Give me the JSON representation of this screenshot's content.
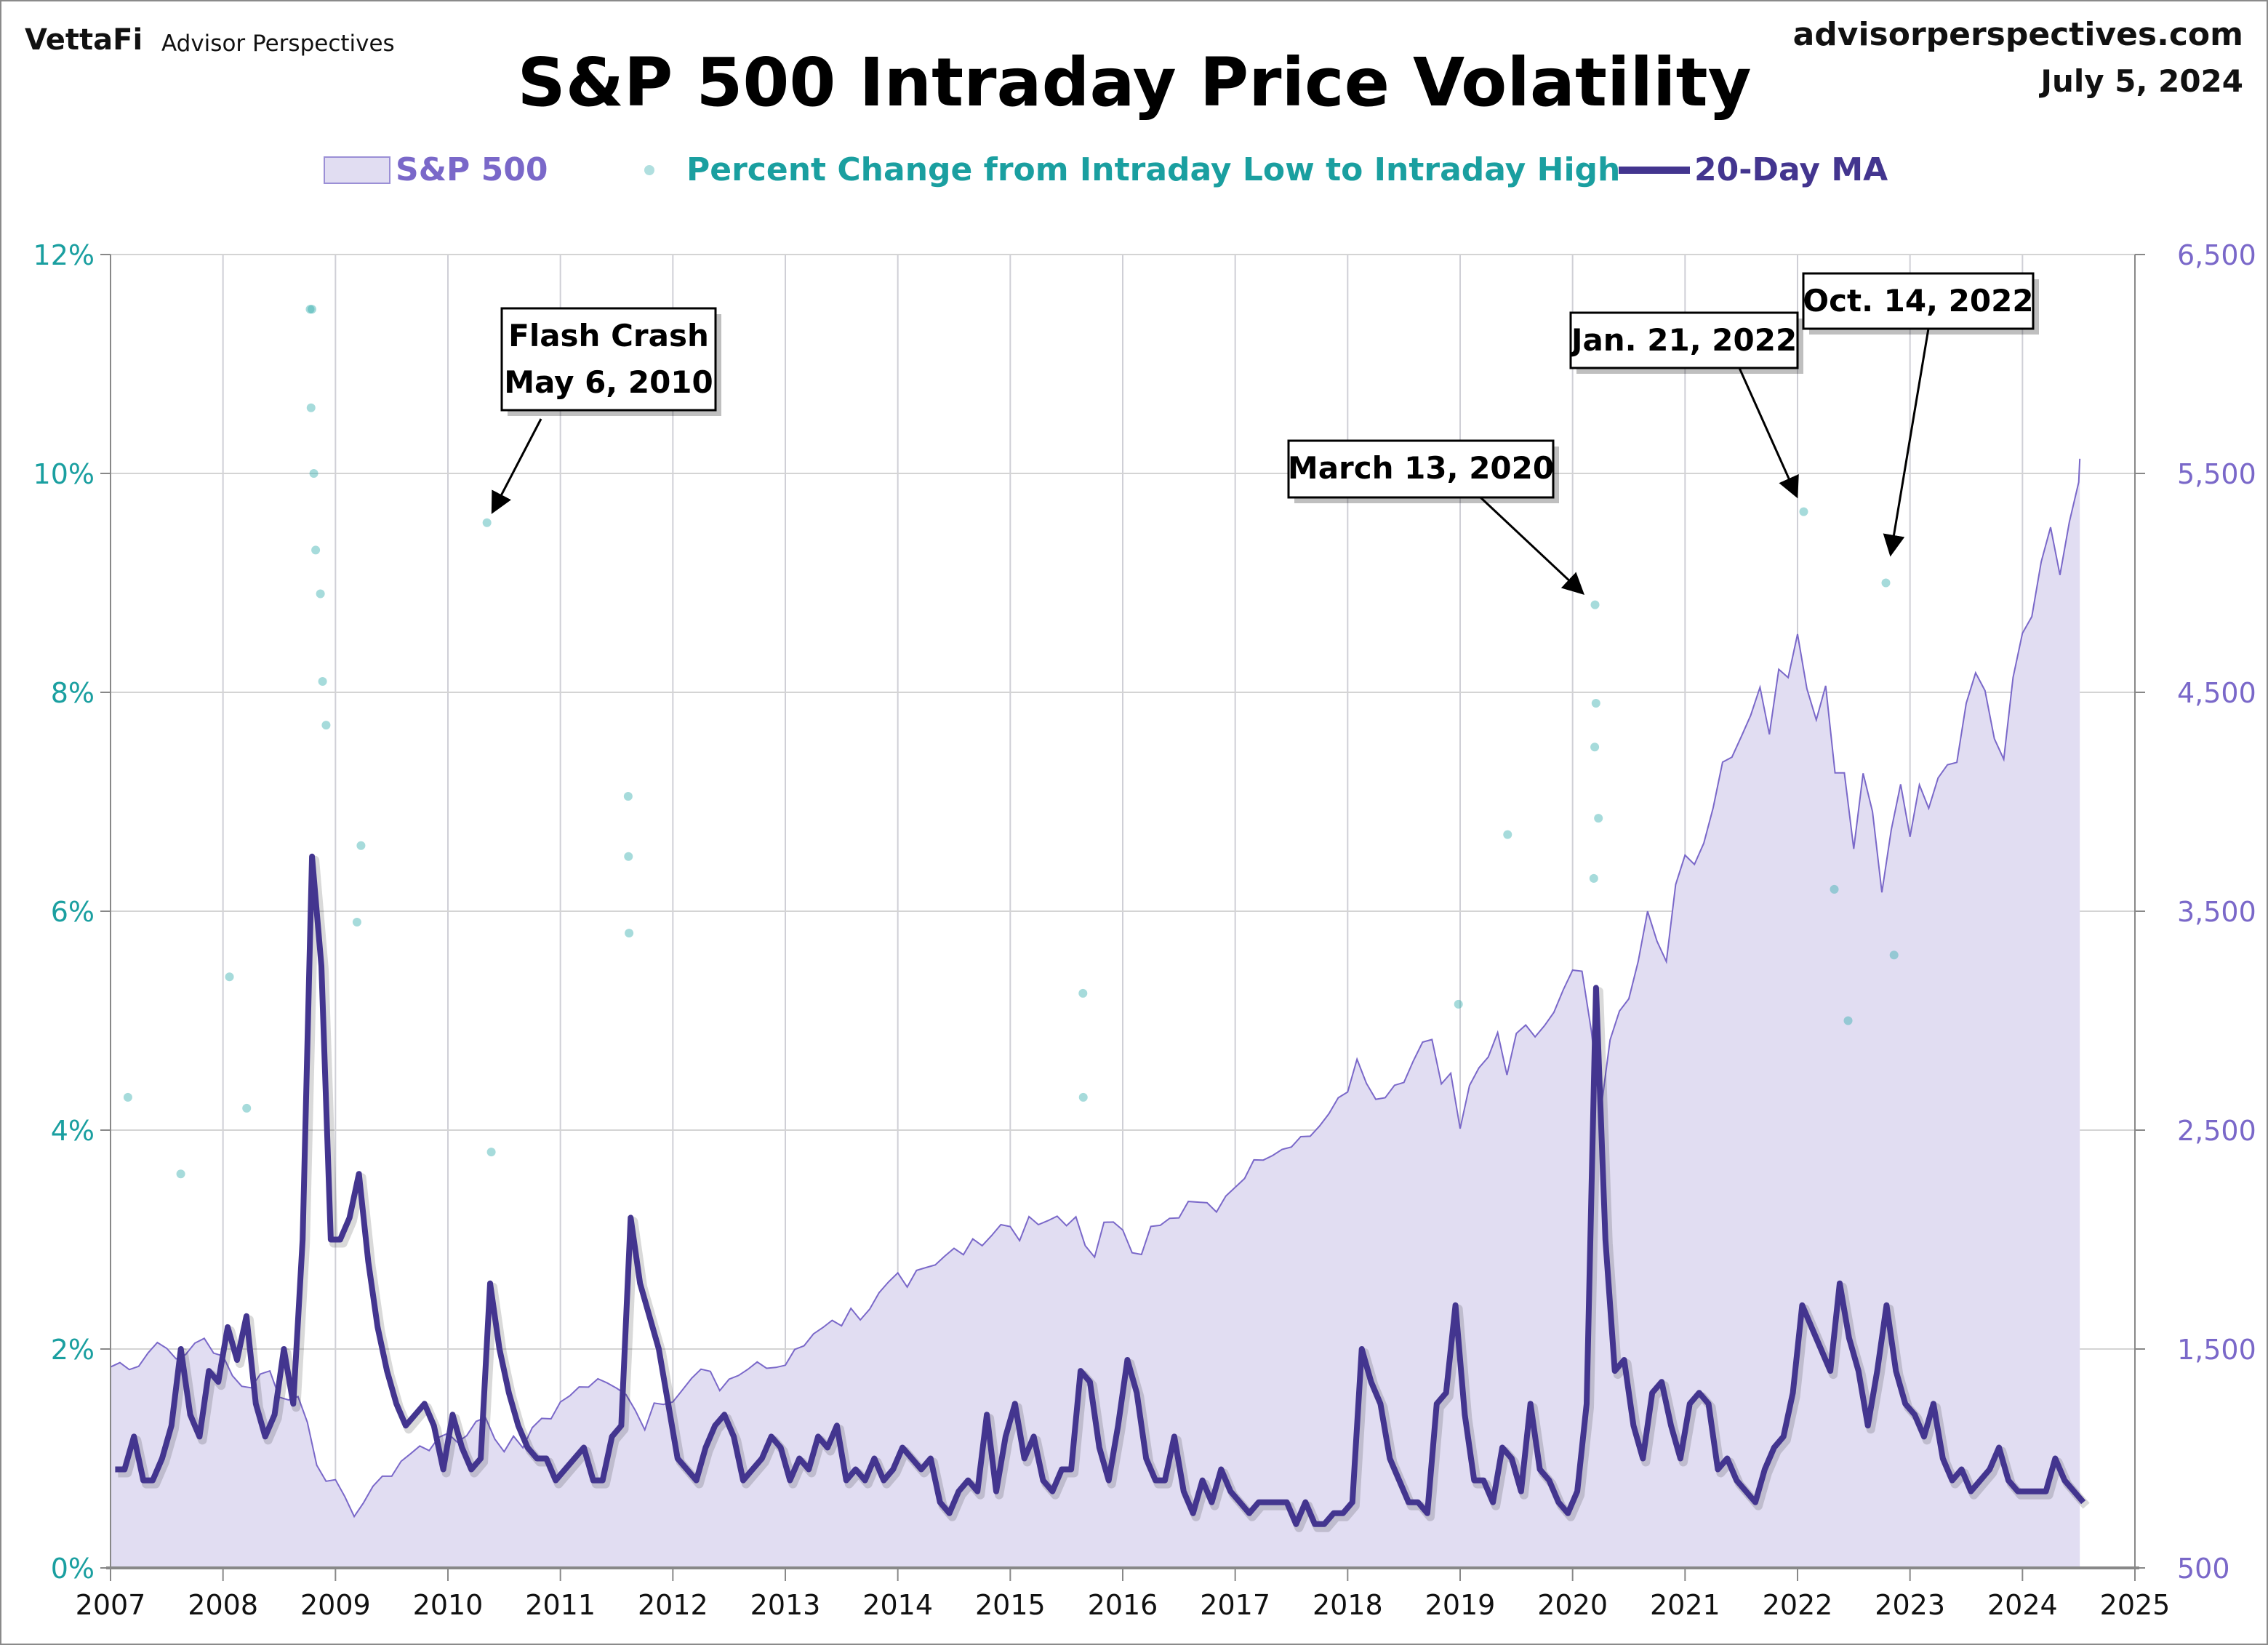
{
  "header": {
    "brand": "VettaFi",
    "brand_sub": "Advisor Perspectives",
    "site": "advisorperspectives.com",
    "date": "July 5, 2024",
    "title": "S&P 500 Intraday Price Volatility"
  },
  "colors": {
    "sp500_fill": "#e1ddf2",
    "sp500_line": "#7a68c9",
    "scatter": "#3aafb0",
    "ma": "#43358f",
    "left_axis": "#1a9fa0",
    "right_axis": "#7a68c9",
    "grid": "#cfcfd6"
  },
  "chart_data": {
    "type": "line",
    "title": "S&P 500 Intraday Price Volatility",
    "legend": [
      "S&P 500",
      "Percent Change from Intraday Low to Intraday High",
      "20-Day MA"
    ],
    "legend_placement": "top",
    "grid": true,
    "x_ticks": [
      "2007",
      "2008",
      "2009",
      "2010",
      "2011",
      "2012",
      "2013",
      "2014",
      "2015",
      "2016",
      "2017",
      "2018",
      "2019",
      "2020",
      "2021",
      "2022",
      "2023",
      "2024",
      "2025"
    ],
    "xlim": [
      2007,
      2025
    ],
    "left_axis": {
      "ticks": [
        "0%",
        "2%",
        "4%",
        "6%",
        "8%",
        "10%",
        "12%"
      ],
      "ylim": [
        0,
        12
      ]
    },
    "right_axis": {
      "ticks": [
        "500",
        "1,500",
        "2,500",
        "3,500",
        "4,500",
        "5,500",
        "6,500"
      ],
      "ylim": [
        500,
        6500
      ]
    },
    "sp500_monthly_start": "2007-01",
    "sp500_monthly": [
      1438,
      1406,
      1421,
      1482,
      1530,
      1503,
      1455,
      1474,
      1527,
      1549,
      1481,
      1468,
      1378,
      1330,
      1323,
      1386,
      1400,
      1280,
      1267,
      1283,
      1165,
      969,
      896,
      903,
      826,
      735,
      798,
      873,
      919,
      919,
      987,
      1021,
      1057,
      1036,
      1096,
      1115,
      1074,
      1104,
      1169,
      1187,
      1089,
      1031,
      1102,
      1049,
      1141,
      1183,
      1181,
      1258,
      1286,
      1327,
      1326,
      1364,
      1345,
      1321,
      1292,
      1219,
      1131,
      1253,
      1247,
      1258,
      1312,
      1366,
      1408,
      1398,
      1310,
      1362,
      1379,
      1407,
      1441,
      1412,
      1416,
      1426,
      1498,
      1515,
      1569,
      1598,
      1631,
      1606,
      1686,
      1633,
      1682,
      1757,
      1806,
      1848,
      1783,
      1859,
      1872,
      1884,
      1924,
      1960,
      1931,
      2003,
      1972,
      2018,
      2068,
      2059,
      1995,
      2105,
      2068,
      2086,
      2107,
      2063,
      2104,
      1972,
      1920,
      2079,
      2080,
      2044,
      1940,
      1932,
      2060,
      2065,
      2097,
      2099,
      2174,
      2171,
      2168,
      2126,
      2199,
      2239,
      2279,
      2364,
      2363,
      2384,
      2412,
      2423,
      2470,
      2472,
      2519,
      2575,
      2648,
      2674,
      2824,
      2714,
      2641,
      2648,
      2705,
      2718,
      2816,
      2902,
      2914,
      2711,
      2760,
      2507,
      2704,
      2784,
      2834,
      2946,
      2752,
      2942,
      2980,
      2926,
      2977,
      3038,
      3141,
      3231,
      3226,
      2954,
      2585,
      2912,
      3044,
      3100,
      3271,
      3500,
      3363,
      3270,
      3622,
      3756,
      3714,
      3811,
      3973,
      4181,
      4204,
      4298,
      4395,
      4523,
      4308,
      4605,
      4567,
      4766,
      4516,
      4374,
      4530,
      4132,
      4132,
      3785,
      4130,
      3955,
      3586,
      3872,
      4080,
      3840,
      4077,
      3970,
      4109,
      4169,
      4180,
      4450,
      4589,
      4508,
      4288,
      4194,
      4568,
      4770,
      4846,
      5096,
      5254,
      5036,
      5278,
      5460,
      5567
    ],
    "ma20_monthly_pct": [
      0.9,
      0.9,
      1.2,
      0.8,
      0.8,
      1.0,
      1.3,
      2.0,
      1.4,
      1.2,
      1.8,
      1.7,
      2.2,
      1.9,
      2.3,
      1.5,
      1.2,
      1.4,
      2.0,
      1.5,
      3.0,
      6.5,
      5.5,
      3.0,
      3.0,
      3.2,
      3.6,
      2.8,
      2.2,
      1.8,
      1.5,
      1.3,
      1.4,
      1.5,
      1.3,
      0.9,
      1.4,
      1.1,
      0.9,
      1.0,
      2.6,
      2.0,
      1.6,
      1.3,
      1.1,
      1.0,
      1.0,
      0.8,
      0.9,
      1.0,
      1.1,
      0.8,
      0.8,
      1.2,
      1.3,
      3.2,
      2.6,
      2.3,
      2.0,
      1.5,
      1.0,
      0.9,
      0.8,
      1.1,
      1.3,
      1.4,
      1.2,
      0.8,
      0.9,
      1.0,
      1.2,
      1.1,
      0.8,
      1.0,
      0.9,
      1.2,
      1.1,
      1.3,
      0.8,
      0.9,
      0.8,
      1.0,
      0.8,
      0.9,
      1.1,
      1.0,
      0.9,
      1.0,
      0.6,
      0.5,
      0.7,
      0.8,
      0.7,
      1.4,
      0.7,
      1.2,
      1.5,
      1.0,
      1.2,
      0.8,
      0.7,
      0.9,
      0.9,
      1.8,
      1.7,
      1.1,
      0.8,
      1.3,
      1.9,
      1.6,
      1.0,
      0.8,
      0.8,
      1.2,
      0.7,
      0.5,
      0.8,
      0.6,
      0.9,
      0.7,
      0.6,
      0.5,
      0.6,
      0.6,
      0.6,
      0.6,
      0.4,
      0.6,
      0.4,
      0.4,
      0.5,
      0.5,
      0.6,
      2.0,
      1.7,
      1.5,
      1.0,
      0.8,
      0.6,
      0.6,
      0.5,
      1.5,
      1.6,
      2.4,
      1.4,
      0.8,
      0.8,
      0.6,
      1.1,
      1.0,
      0.7,
      1.5,
      0.9,
      0.8,
      0.6,
      0.5,
      0.7,
      1.5,
      5.3,
      3.0,
      1.8,
      1.9,
      1.3,
      1.0,
      1.6,
      1.7,
      1.3,
      1.0,
      1.5,
      1.6,
      1.5,
      0.9,
      1.0,
      0.8,
      0.7,
      0.6,
      0.9,
      1.1,
      1.2,
      1.6,
      2.4,
      2.2,
      2.0,
      1.8,
      2.6,
      2.1,
      1.8,
      1.3,
      1.8,
      2.4,
      1.8,
      1.5,
      1.4,
      1.2,
      1.5,
      1.0,
      0.8,
      0.9,
      0.7,
      0.8,
      0.9,
      1.1,
      0.8,
      0.7,
      0.7,
      0.7,
      0.7,
      1.0,
      0.8,
      0.7,
      0.6
    ],
    "scatter_points": [
      [
        "2007-02-27",
        4.3
      ],
      [
        "2007-08-16",
        3.6
      ],
      [
        "2008-01-22",
        5.4
      ],
      [
        "2008-03-17",
        4.2
      ],
      [
        "2008-10-10",
        11.5
      ],
      [
        "2008-10-13",
        10.6
      ],
      [
        "2008-10-16",
        11.5
      ],
      [
        "2008-10-22",
        10.0
      ],
      [
        "2008-10-28",
        9.3
      ],
      [
        "2008-11-13",
        8.9
      ],
      [
        "2008-11-20",
        8.1
      ],
      [
        "2008-12-01",
        7.7
      ],
      [
        "2009-03-23",
        6.6
      ],
      [
        "2009-03-10",
        5.9
      ],
      [
        "2010-05-06",
        9.55
      ],
      [
        "2010-05-20",
        3.8
      ],
      [
        "2011-08-08",
        7.05
      ],
      [
        "2011-08-09",
        6.5
      ],
      [
        "2011-08-11",
        5.8
      ],
      [
        "2015-08-24",
        5.25
      ],
      [
        "2015-08-25",
        4.3
      ],
      [
        "2019-06-03",
        6.7
      ],
      [
        "2018-12-26",
        5.15
      ],
      [
        "2020-03-13",
        8.8
      ],
      [
        "2020-03-16",
        7.9
      ],
      [
        "2020-03-12",
        7.5
      ],
      [
        "2020-03-24",
        6.85
      ],
      [
        "2020-03-09",
        6.3
      ],
      [
        "2022-01-21",
        9.65
      ],
      [
        "2022-04-29",
        6.2
      ],
      [
        "2022-06-13",
        5.0
      ],
      [
        "2022-10-14",
        9.0
      ],
      [
        "2022-11-10",
        5.6
      ]
    ],
    "annotations": [
      {
        "lines": [
          "Flash Crash",
          "May 6, 2010"
        ],
        "date": "2010-05-06",
        "value_pct": 9.55
      },
      {
        "lines": [
          "March 13, 2020"
        ],
        "date": "2020-03-13",
        "value_pct": 8.8
      },
      {
        "lines": [
          "Jan. 21, 2022"
        ],
        "date": "2022-01-21",
        "value_pct": 9.65
      },
      {
        "lines": [
          "Oct. 14, 2022"
        ],
        "date": "2022-10-14",
        "value_pct": 9.0
      }
    ]
  }
}
